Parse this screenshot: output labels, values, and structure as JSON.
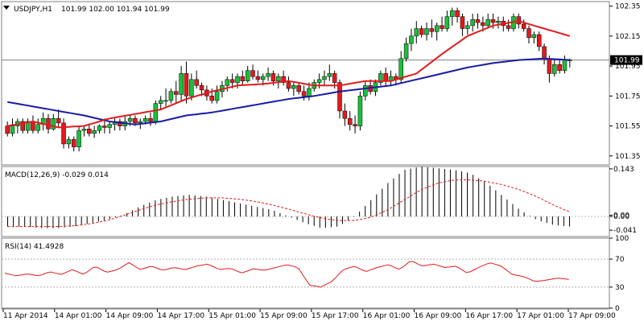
{
  "chart_data": {
    "type": "candlestick",
    "price_panel": {
      "symbol_label": "USDJPY,H1",
      "ohlc_readout": "101.99 102.00 101.94 101.99",
      "ylim": [
        101.29,
        102.38
      ],
      "ticks": [
        "102.35",
        "102.15",
        "101.95",
        "101.75",
        "101.55",
        "101.35"
      ],
      "tick_values": [
        102.35,
        102.15,
        101.95,
        101.75,
        101.55,
        101.35
      ],
      "current_price": 101.99,
      "current_price_label": "101.99",
      "candles": [
        [
          101.55,
          101.58,
          101.48,
          101.5
        ],
        [
          101.5,
          101.6,
          101.48,
          101.55
        ],
        [
          101.55,
          101.6,
          101.5,
          101.58
        ],
        [
          101.58,
          101.6,
          101.5,
          101.52
        ],
        [
          101.52,
          101.6,
          101.5,
          101.58
        ],
        [
          101.58,
          101.62,
          101.5,
          101.52
        ],
        [
          101.52,
          101.6,
          101.5,
          101.56
        ],
        [
          101.56,
          101.64,
          101.52,
          101.6
        ],
        [
          101.6,
          101.63,
          101.5,
          101.53
        ],
        [
          101.53,
          101.63,
          101.52,
          101.6
        ],
        [
          101.6,
          101.66,
          101.54,
          101.57
        ],
        [
          101.57,
          101.6,
          101.4,
          101.43
        ],
        [
          101.43,
          101.48,
          101.4,
          101.46
        ],
        [
          101.46,
          101.48,
          101.38,
          101.41
        ],
        [
          101.41,
          101.55,
          101.38,
          101.52
        ],
        [
          101.52,
          101.55,
          101.48,
          101.53
        ],
        [
          101.53,
          101.56,
          101.48,
          101.5
        ],
        [
          101.5,
          101.55,
          101.47,
          101.52
        ],
        [
          101.52,
          101.56,
          101.5,
          101.55
        ],
        [
          101.55,
          101.6,
          101.5,
          101.54
        ],
        [
          101.54,
          101.58,
          101.5,
          101.56
        ],
        [
          101.56,
          101.6,
          101.52,
          101.58
        ],
        [
          101.58,
          101.6,
          101.52,
          101.55
        ],
        [
          101.55,
          101.62,
          101.52,
          101.58
        ],
        [
          101.58,
          101.62,
          101.55,
          101.6
        ],
        [
          101.6,
          101.62,
          101.55,
          101.57
        ],
        [
          101.57,
          101.6,
          101.53,
          101.58
        ],
        [
          101.58,
          101.62,
          101.56,
          101.6
        ],
        [
          101.6,
          101.64,
          101.55,
          101.58
        ],
        [
          101.58,
          101.72,
          101.56,
          101.7
        ],
        [
          101.7,
          101.75,
          101.66,
          101.72
        ],
        [
          101.72,
          101.8,
          101.68,
          101.72
        ],
        [
          101.72,
          101.8,
          101.7,
          101.78
        ],
        [
          101.78,
          101.85,
          101.7,
          101.76
        ],
        [
          101.76,
          101.95,
          101.72,
          101.9
        ],
        [
          101.9,
          101.98,
          101.7,
          101.75
        ],
        [
          101.75,
          101.9,
          101.72,
          101.86
        ],
        [
          101.86,
          101.92,
          101.8,
          101.82
        ],
        [
          101.82,
          101.84,
          101.75,
          101.79
        ],
        [
          101.79,
          101.82,
          101.72,
          101.75
        ],
        [
          101.75,
          101.8,
          101.7,
          101.72
        ],
        [
          101.72,
          101.82,
          101.7,
          101.78
        ],
        [
          101.78,
          101.85,
          101.74,
          101.82
        ],
        [
          101.82,
          101.88,
          101.78,
          101.86
        ],
        [
          101.86,
          101.9,
          101.8,
          101.84
        ],
        [
          101.84,
          101.9,
          101.8,
          101.88
        ],
        [
          101.88,
          101.92,
          101.82,
          101.85
        ],
        [
          101.85,
          101.95,
          101.84,
          101.92
        ],
        [
          101.92,
          101.96,
          101.86,
          101.88
        ],
        [
          101.88,
          101.92,
          101.84,
          101.86
        ],
        [
          101.86,
          101.9,
          101.82,
          101.88
        ],
        [
          101.88,
          101.94,
          101.85,
          101.9
        ],
        [
          101.9,
          101.92,
          101.82,
          101.85
        ],
        [
          101.85,
          101.9,
          101.8,
          101.88
        ],
        [
          101.88,
          101.92,
          101.82,
          101.84
        ],
        [
          101.84,
          101.88,
          101.78,
          101.8
        ],
        [
          101.8,
          101.84,
          101.75,
          101.82
        ],
        [
          101.82,
          101.84,
          101.76,
          101.78
        ],
        [
          101.78,
          101.82,
          101.72,
          101.75
        ],
        [
          101.75,
          101.84,
          101.72,
          101.8
        ],
        [
          101.8,
          101.86,
          101.78,
          101.84
        ],
        [
          101.84,
          101.9,
          101.8,
          101.86
        ],
        [
          101.86,
          101.92,
          101.82,
          101.88
        ],
        [
          101.88,
          101.96,
          101.85,
          101.9
        ],
        [
          101.9,
          101.92,
          101.8,
          101.84
        ],
        [
          101.84,
          101.86,
          101.6,
          101.65
        ],
        [
          101.65,
          101.7,
          101.55,
          101.6
        ],
        [
          101.6,
          101.65,
          101.52,
          101.56
        ],
        [
          101.56,
          101.62,
          101.5,
          101.55
        ],
        [
          101.55,
          101.78,
          101.52,
          101.75
        ],
        [
          101.75,
          101.85,
          101.72,
          101.82
        ],
        [
          101.82,
          101.86,
          101.76,
          101.78
        ],
        [
          101.78,
          101.86,
          101.75,
          101.84
        ],
        [
          101.84,
          101.92,
          101.82,
          101.9
        ],
        [
          101.9,
          101.94,
          101.82,
          101.85
        ],
        [
          101.85,
          101.92,
          101.82,
          101.88
        ],
        [
          101.88,
          101.9,
          101.82,
          101.86
        ],
        [
          101.86,
          102.05,
          101.84,
          102.0
        ],
        [
          102.0,
          102.14,
          101.98,
          102.1
        ],
        [
          102.1,
          102.2,
          102.05,
          102.15
        ],
        [
          102.15,
          102.25,
          102.1,
          102.2
        ],
        [
          102.2,
          102.22,
          102.14,
          102.16
        ],
        [
          102.16,
          102.24,
          102.12,
          102.2
        ],
        [
          102.2,
          102.26,
          102.14,
          102.18
        ],
        [
          102.18,
          102.24,
          102.12,
          102.22
        ],
        [
          102.22,
          102.28,
          102.18,
          102.2
        ],
        [
          102.2,
          102.32,
          102.18,
          102.28
        ],
        [
          102.28,
          102.34,
          102.22,
          102.32
        ],
        [
          102.32,
          102.34,
          102.24,
          102.28
        ],
        [
          102.28,
          102.3,
          102.15,
          102.2
        ],
        [
          102.2,
          102.25,
          102.16,
          102.22
        ],
        [
          102.22,
          102.3,
          102.18,
          102.26
        ],
        [
          102.26,
          102.3,
          102.2,
          102.24
        ],
        [
          102.24,
          102.28,
          102.18,
          102.22
        ],
        [
          102.22,
          102.3,
          102.2,
          102.26
        ],
        [
          102.26,
          102.3,
          102.2,
          102.24
        ],
        [
          102.24,
          102.28,
          102.2,
          102.25
        ],
        [
          102.25,
          102.28,
          102.18,
          102.22
        ],
        [
          102.22,
          102.26,
          102.18,
          102.2
        ],
        [
          102.2,
          102.3,
          102.18,
          102.28
        ],
        [
          102.28,
          102.3,
          102.2,
          102.23
        ],
        [
          102.23,
          102.26,
          102.18,
          102.2
        ],
        [
          102.2,
          102.22,
          102.1,
          102.14
        ],
        [
          102.14,
          102.18,
          102.1,
          102.16
        ],
        [
          102.16,
          102.18,
          102.05,
          102.08
        ],
        [
          102.08,
          102.1,
          101.96,
          102.0
        ],
        [
          102.0,
          102.02,
          101.84,
          101.9
        ],
        [
          101.9,
          102.0,
          101.88,
          101.96
        ],
        [
          101.96,
          102.0,
          101.9,
          101.92
        ],
        [
          101.92,
          102.02,
          101.9,
          101.99
        ],
        [
          101.99,
          102.0,
          101.94,
          101.99
        ]
      ],
      "ma_fast_key_values": [
        101.55,
        101.58,
        101.54,
        101.55,
        101.6,
        101.63,
        101.66,
        101.73,
        101.78,
        101.82,
        101.83,
        101.85,
        101.82,
        101.82,
        101.85,
        101.85,
        101.9,
        102.03,
        102.15,
        102.22,
        102.25,
        102.2,
        102.15
      ],
      "ma_slow_key_values": [
        101.71,
        101.68,
        101.65,
        101.62,
        101.58,
        101.56,
        101.58,
        101.62,
        101.64,
        101.67,
        101.7,
        101.73,
        101.75,
        101.78,
        101.8,
        101.82,
        101.86,
        101.9,
        101.94,
        101.97,
        101.99,
        102.0,
        101.99
      ],
      "ma_fast_color": "#e31a1c",
      "ma_slow_color": "#1a1aa6",
      "bull_color": "#1bbf3b",
      "bear_color": "#e31a1c"
    },
    "macd_panel": {
      "label": "MACD(12,26,9) -0.029 0.014",
      "ylim": [
        -0.06,
        0.15
      ],
      "ticks": [
        "0.143",
        "0.00",
        "0.00",
        "-0.041"
      ],
      "tick_values": [
        0.143,
        0.004,
        0.0,
        -0.041
      ],
      "histogram_key_values": [
        -0.03,
        -0.03,
        -0.035,
        -0.035,
        -0.03,
        -0.02,
        -0.01,
        0.005,
        0.03,
        0.05,
        0.06,
        0.065,
        0.06,
        0.05,
        0.04,
        0.03,
        0.02,
        0.0,
        -0.02,
        -0.035,
        -0.03,
        0.0,
        0.05,
        0.1,
        0.14,
        0.15,
        0.145,
        0.14,
        0.13,
        0.1,
        0.06,
        0.02,
        -0.01,
        -0.025,
        -0.03
      ],
      "signal_key_values": [
        -0.03,
        -0.03,
        -0.03,
        -0.03,
        -0.028,
        -0.022,
        -0.012,
        0.003,
        0.02,
        0.035,
        0.045,
        0.052,
        0.056,
        0.056,
        0.052,
        0.045,
        0.035,
        0.022,
        0.008,
        -0.005,
        -0.012,
        -0.012,
        -0.002,
        0.02,
        0.05,
        0.08,
        0.1,
        0.11,
        0.11,
        0.105,
        0.095,
        0.08,
        0.06,
        0.035,
        0.014
      ],
      "histogram_color": "#000000",
      "signal_color": "#e31a1c"
    },
    "rsi_panel": {
      "label": "RSI(14) 41.4928",
      "ylim": [
        0,
        100
      ],
      "ticks": [
        "100",
        "70",
        "30",
        "0"
      ],
      "tick_values": [
        100,
        70,
        30,
        0
      ],
      "levels": [
        70,
        30
      ],
      "key_values": [
        50,
        46,
        49,
        46,
        52,
        48,
        55,
        48,
        60,
        51,
        55,
        65,
        55,
        60,
        54,
        58,
        55,
        60,
        63,
        55,
        57,
        50,
        56,
        54,
        58,
        62,
        58,
        33,
        30,
        38,
        55,
        60,
        52,
        58,
        62,
        55,
        68,
        60,
        63,
        58,
        60,
        50,
        58,
        65,
        60,
        48,
        45,
        38,
        40,
        43,
        41
      ],
      "line_color": "#e31a1c"
    },
    "time_axis": {
      "labels": [
        "11 Apr 2014",
        "14 Apr 01:00",
        "14 Apr 09:00",
        "14 Apr 17:00",
        "15 Apr 01:00",
        "15 Apr 09:00",
        "15 Apr 17:00",
        "16 Apr 01:00",
        "16 Apr 09:00",
        "16 Apr 17:00",
        "17 Apr 01:00",
        "17 Apr 09:00"
      ]
    }
  }
}
